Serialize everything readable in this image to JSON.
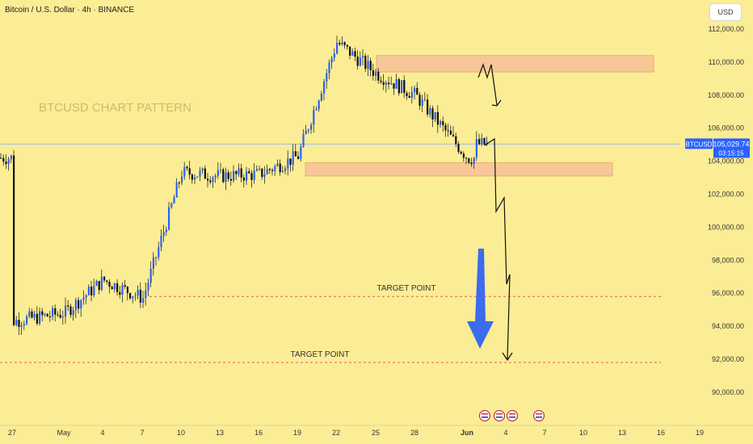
{
  "header": {
    "symbol_title": "Bitcoin / U.S. Dollar · 4h · BINANCE",
    "currency": "USD"
  },
  "watermark": "BTCUSD CHART PATTERN",
  "colors": {
    "background": "#fbed95",
    "candle": "#2962ff",
    "wick": "#111111",
    "zone": "#f7c797",
    "target_line": "#e25d5d",
    "arrow": "#3b6bf0"
  },
  "chart_data": {
    "type": "candlestick",
    "title": "Bitcoin / U.S. Dollar · 4h · BINANCE",
    "ylim": [
      89000,
      113000
    ],
    "y_ticks": [
      90000,
      92000,
      94000,
      96000,
      98000,
      100000,
      102000,
      104000,
      106000,
      108000,
      110000,
      112000
    ],
    "y_tick_labels": [
      "90,000.00",
      "92,000.00",
      "94,000.00",
      "96,000.00",
      "98,000.00",
      "100,000.00",
      "102,000.00",
      "104,000.00",
      "106,000.00",
      "108,000.00",
      "110,000.00",
      "112,000.00"
    ],
    "x_tick_labels": [
      "27",
      "May",
      "4",
      "7",
      "10",
      "13",
      "16",
      "19",
      "22",
      "25",
      "28",
      "Jun",
      "4",
      "7",
      "10",
      "13",
      "16",
      "19"
    ],
    "path": [
      [
        "27",
        94300
      ],
      [
        "May",
        94800
      ],
      [
        "4",
        96800
      ],
      [
        "7",
        95700
      ],
      [
        "10",
        103300
      ],
      [
        "13",
        103100
      ],
      [
        "16",
        103200
      ],
      [
        "19",
        104300
      ],
      [
        "22",
        111200
      ],
      [
        "25",
        109300
      ],
      [
        "28",
        108000
      ],
      [
        "Jun",
        104200
      ]
    ],
    "price_label": {
      "symbol": "BTCUSD",
      "value": 105029.74,
      "value_text": "105,029.74",
      "countdown": "03:15:15"
    },
    "zones": [
      {
        "low": 109400,
        "high": 110400,
        "from": "25",
        "to": "10"
      },
      {
        "low": 103100,
        "high": 103900,
        "from": "19",
        "to": "10"
      }
    ],
    "targets": [
      {
        "label": "TARGET POINT",
        "value": 96000
      },
      {
        "label": "TARGET POINT",
        "value": 92000
      }
    ]
  }
}
